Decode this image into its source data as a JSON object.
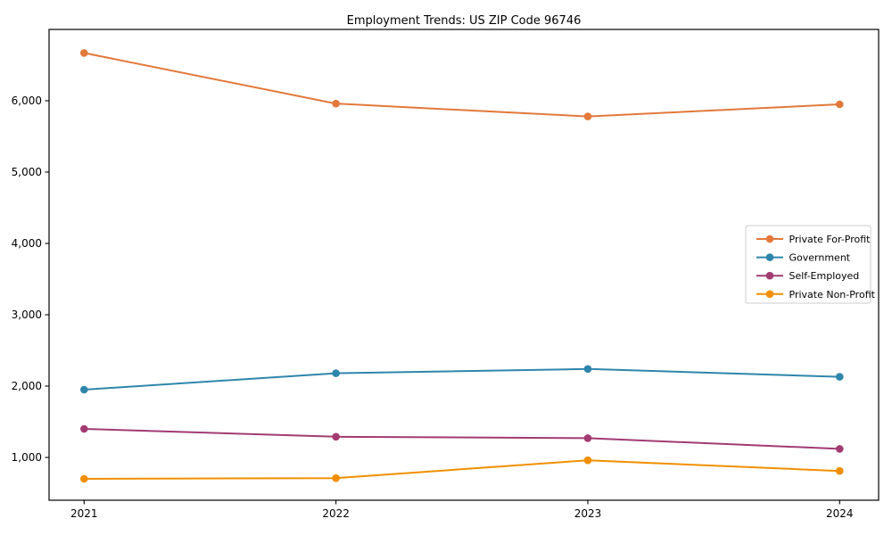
{
  "title": "Employment Trends: US ZIP Code 96746",
  "chart_data": {
    "type": "line",
    "title": "Employment Trends: US ZIP Code 96746",
    "categories": [
      "2021",
      "2022",
      "2023",
      "2024"
    ],
    "series": [
      {
        "name": "Private For-Profit",
        "color": "#e2793b",
        "values": [
          6670,
          5960,
          5780,
          5950
        ]
      },
      {
        "name": "Government",
        "color": "#2e86ab",
        "values": [
          1950,
          2180,
          2240,
          2130
        ]
      },
      {
        "name": "Self-Employed",
        "color": "#a23b72",
        "values": [
          1400,
          1290,
          1270,
          1120
        ]
      },
      {
        "name": "Private Non-Profit",
        "color": "#f18f01",
        "values": [
          700,
          710,
          960,
          810
        ]
      }
    ],
    "xlabel": "",
    "ylabel": "",
    "ylim": [
      400,
      7000
    ],
    "yticks": [
      1000,
      2000,
      3000,
      4000,
      5000,
      6000
    ],
    "ytick_labels": [
      "1,000",
      "2,000",
      "3,000",
      "4,000",
      "5,000",
      "6,000"
    ],
    "grid": false,
    "legend_position": "center-right",
    "marker": "circle",
    "axis_color": "#000000",
    "background_color": "#ffffff"
  }
}
